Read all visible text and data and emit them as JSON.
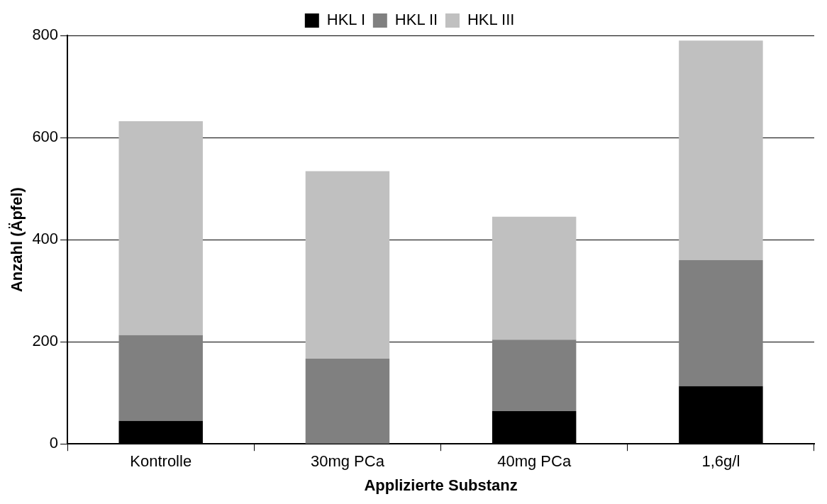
{
  "chart_data": {
    "type": "bar",
    "stacked": true,
    "xlabel": "Applizierte Substanz",
    "ylabel": "Anzahl (Äpfel)",
    "categories": [
      "Kontrolle",
      "30mg PCa",
      "40mg PCa",
      "1,6g/l"
    ],
    "series": [
      {
        "name": "HKL I",
        "color": "#000000",
        "values": [
          45,
          0,
          64,
          113
        ]
      },
      {
        "name": "HKL II",
        "color": "#808080",
        "values": [
          168,
          167,
          140,
          247
        ]
      },
      {
        "name": "HKL III",
        "color": "#c0c0c0",
        "values": [
          419,
          367,
          241,
          430
        ]
      }
    ],
    "ylim": [
      0,
      800
    ],
    "yticks": [
      0,
      200,
      400,
      600,
      800
    ],
    "grid": "y",
    "legend": "top"
  }
}
